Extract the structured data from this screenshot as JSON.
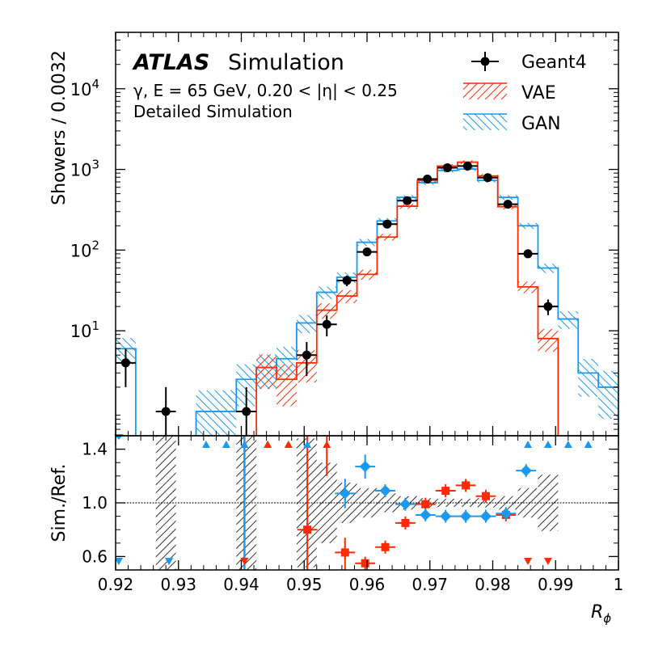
{
  "chart_data": {
    "type": "histogram",
    "title": "Simulation",
    "experiment": "ATLAS",
    "info_lines": [
      "γ, E = 65 GeV, 0.20 < |η| < 0.25",
      "Detailed Simulation"
    ],
    "xlabel": "R",
    "xlabel_sub": "ϕ",
    "ylabel": "Showers / 0.0032",
    "ratio_ylabel": "Sim./Ref.",
    "xlim": [
      0.92,
      1.0
    ],
    "xticks": [
      "0.92",
      "0.93",
      "0.94",
      "0.95",
      "0.96",
      "0.97",
      "0.98",
      "0.99",
      "1"
    ],
    "ylim_log": [
      0.5,
      50000
    ],
    "yticks": [
      {
        "label": "10",
        "exp": "1",
        "value": 10
      },
      {
        "label": "10",
        "exp": "2",
        "value": 100
      },
      {
        "label": "10",
        "exp": "3",
        "value": 1000
      },
      {
        "label": "10",
        "exp": "4",
        "value": 10000
      }
    ],
    "ratio_ylim": [
      0.5,
      1.5
    ],
    "ratio_yticks": [
      "0.6",
      "1.0",
      "1.4"
    ],
    "bin_start": 0.92,
    "bin_width": 0.0032,
    "legend": {
      "geant4": "Geant4",
      "vae": "VAE",
      "gan": "GAN"
    },
    "colors": {
      "geant4": "#000000",
      "vae": "#ff2a00",
      "gan": "#1a99f0",
      "uncertainty": "#000000"
    },
    "series": [
      {
        "name": "Geant4",
        "values": [
          4,
          0,
          1,
          0,
          0,
          0,
          1,
          0,
          0,
          5,
          12,
          42,
          95,
          210,
          410,
          760,
          1050,
          1100,
          790,
          370,
          90,
          20,
          0,
          0,
          0
        ],
        "errors_rel": [
          0.5,
          0,
          1.0,
          0,
          0,
          0,
          1.0,
          0,
          0,
          0.45,
          0.29,
          0.15,
          0.1,
          0.07,
          0.05,
          0.036,
          0.031,
          0.03,
          0.036,
          0.052,
          0.105,
          0.22,
          0,
          0,
          0
        ]
      },
      {
        "name": "VAE",
        "values": [
          0,
          0,
          0,
          0,
          0,
          0,
          0,
          3.5,
          2.5,
          4,
          18,
          27,
          50,
          145,
          350,
          730,
          1100,
          1230,
          830,
          345,
          35,
          8,
          0,
          0,
          0
        ]
      },
      {
        "name": "GAN",
        "values": [
          6,
          0,
          0,
          0,
          1,
          1,
          2.5,
          3.5,
          4.5,
          12.5,
          30,
          46,
          125,
          230,
          450,
          685,
          970,
          1010,
          730,
          450,
          200,
          60,
          14,
          3,
          2
        ]
      }
    ],
    "ratio": {
      "vae_points": [
        [
          0.9505,
          0.8
        ],
        [
          0.9565,
          0.63
        ],
        [
          0.9597,
          0.55
        ],
        [
          0.9629,
          0.67
        ],
        [
          0.9661,
          0.85
        ],
        [
          0.9693,
          0.99
        ],
        [
          0.9725,
          1.09
        ],
        [
          0.9757,
          1.13
        ],
        [
          0.9789,
          1.05
        ],
        [
          0.9821,
          0.91
        ]
      ],
      "gan_points": [
        [
          0.9565,
          1.07
        ],
        [
          0.9597,
          1.27
        ],
        [
          0.9629,
          1.09
        ],
        [
          0.9661,
          0.99
        ],
        [
          0.9693,
          0.91
        ],
        [
          0.9725,
          0.9
        ],
        [
          0.9757,
          0.9
        ],
        [
          0.9789,
          0.9
        ],
        [
          0.9821,
          0.92
        ],
        [
          0.9853,
          1.24
        ]
      ],
      "uncertainty_bands": [
        [
          0.9264,
          0.9296,
          0.5,
          1.5
        ],
        [
          0.9392,
          0.9424,
          0.5,
          1.5
        ],
        [
          0.9488,
          0.952,
          0.52,
          1.48
        ],
        [
          0.952,
          0.9552,
          0.7,
          1.3
        ],
        [
          0.9552,
          0.9584,
          0.85,
          1.15
        ],
        [
          0.9584,
          0.9616,
          0.89,
          1.11
        ],
        [
          0.9616,
          0.9648,
          0.93,
          1.07
        ],
        [
          0.9648,
          0.968,
          0.95,
          1.05
        ],
        [
          0.968,
          0.9712,
          0.965,
          1.035
        ],
        [
          0.9712,
          0.9744,
          0.97,
          1.03
        ],
        [
          0.9744,
          0.9776,
          0.97,
          1.03
        ],
        [
          0.9776,
          0.9808,
          0.965,
          1.035
        ],
        [
          0.9808,
          0.984,
          0.95,
          1.05
        ],
        [
          0.984,
          0.9872,
          0.89,
          1.11
        ],
        [
          0.9872,
          0.9904,
          0.79,
          1.21
        ]
      ],
      "offscale_up_gan": [
        0.9344,
        0.9376,
        0.9405,
        0.9442,
        0.9475,
        0.9505,
        0.9856,
        0.9888,
        0.992,
        0.9952
      ],
      "offscale_up_vae": [
        0.9442,
        0.9475,
        0.9536
      ],
      "offscale_down_vae": [
        0.9205,
        0.9285,
        0.9405,
        0.9856,
        0.9888
      ],
      "offscale_down_gan": [
        0.9205,
        0.9285
      ]
    }
  }
}
